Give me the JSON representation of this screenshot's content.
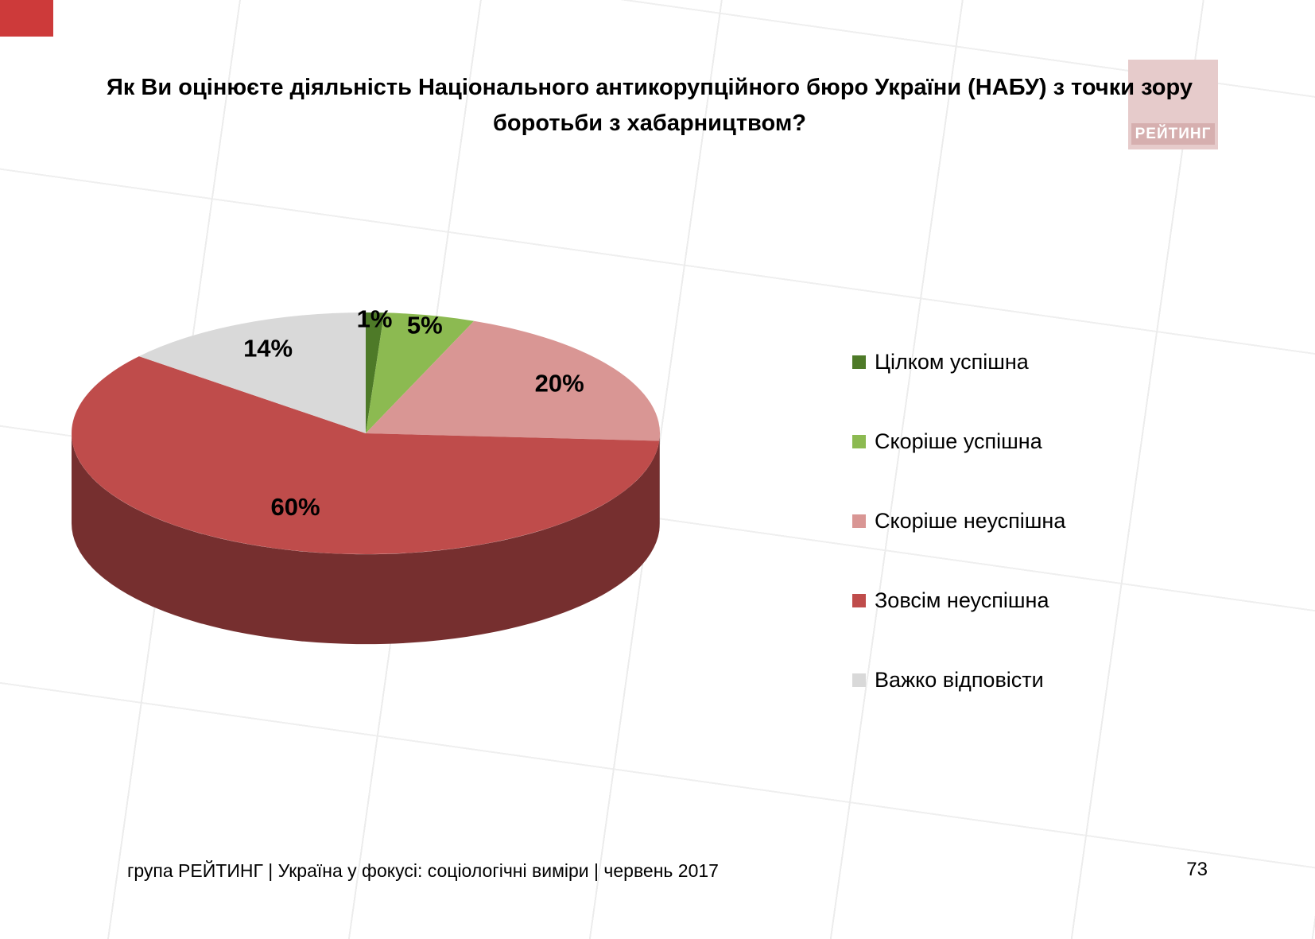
{
  "slide": {
    "title": "Як Ви оцінюєте діяльність Національного антикорупційного бюро України (НАБУ) з точки зору боротьби з хабарництвом?",
    "footer": "група РЕЙТИНГ  |  Україна у фокусі: соціологічні виміри  |  червень 2017",
    "page_number": "73",
    "logo_text": "РЕЙТИНГ",
    "brand_colors": {
      "corner_red": "#cd3a3a",
      "logo_background": "#e6cbcb",
      "logo_band": "#d6afaf"
    }
  },
  "chart_data": {
    "type": "pie",
    "style": "3d",
    "title": "Як Ви оцінюєте діяльність Національного антикорупційного бюро України (НАБУ) з точки зору боротьби з хабарництвом?",
    "categories": [
      "Цілком успішна",
      "Скоріше успішна",
      "Скоріше неуспішна",
      "Зовсім неуспішна",
      "Важко відповісти"
    ],
    "values": [
      1,
      5,
      20,
      60,
      14
    ],
    "value_labels": [
      "1%",
      "5%",
      "20%",
      "60%",
      "14%"
    ],
    "colors": [
      "#4e7a28",
      "#8cba51",
      "#d99694",
      "#bf4c4b",
      "#d9d9d9"
    ],
    "legend_position": "right",
    "start_angle_deg": -90,
    "direction": "clockwise",
    "units": "percent"
  }
}
